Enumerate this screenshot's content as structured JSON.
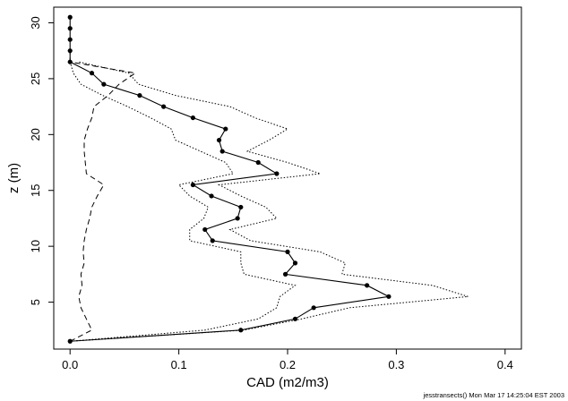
{
  "chart_data": {
    "type": "line",
    "xlabel": "CAD (m2/m3)",
    "ylabel": "z (m)",
    "xlim": [
      -0.015,
      0.415
    ],
    "ylim": [
      0.8,
      31.4
    ],
    "x_ticks": [
      0.0,
      0.1,
      0.2,
      0.3,
      0.4
    ],
    "x_tick_labels": [
      "0.0",
      "0.1",
      "0.2",
      "0.3",
      "0.4"
    ],
    "y_ticks": [
      5,
      10,
      15,
      20,
      25,
      30
    ],
    "y_tick_labels": [
      "5",
      "10",
      "15",
      "20",
      "25",
      "30"
    ],
    "grid": false,
    "footer": "jesstransects() Mon Mar 17 14:25:04 EST 2003",
    "series": [
      {
        "style": "solid-with-points",
        "points": [
          [
            0.0,
            1.5
          ],
          [
            0.157,
            2.5
          ],
          [
            0.207,
            3.5
          ],
          [
            0.224,
            4.5
          ],
          [
            0.293,
            5.5
          ],
          [
            0.273,
            6.5
          ],
          [
            0.198,
            7.5
          ],
          [
            0.207,
            8.5
          ],
          [
            0.2,
            9.5
          ],
          [
            0.131,
            10.5
          ],
          [
            0.124,
            11.5
          ],
          [
            0.154,
            12.5
          ],
          [
            0.157,
            13.5
          ],
          [
            0.13,
            14.5
          ],
          [
            0.113,
            15.5
          ],
          [
            0.19,
            16.5
          ],
          [
            0.173,
            17.5
          ],
          [
            0.14,
            18.5
          ],
          [
            0.137,
            19.5
          ],
          [
            0.143,
            20.5
          ],
          [
            0.113,
            21.5
          ],
          [
            0.086,
            22.5
          ],
          [
            0.064,
            23.5
          ],
          [
            0.031,
            24.5
          ],
          [
            0.02,
            25.5
          ],
          [
            0.0,
            26.5
          ],
          [
            0.0,
            27.5
          ],
          [
            0.0,
            28.5
          ],
          [
            0.0,
            29.5
          ],
          [
            0.0,
            30.5
          ]
        ]
      },
      {
        "style": "dotted-upper",
        "points": [
          [
            0.0,
            1.5
          ],
          [
            0.16,
            2.5
          ],
          [
            0.213,
            3.5
          ],
          [
            0.257,
            4.5
          ],
          [
            0.366,
            5.5
          ],
          [
            0.333,
            6.5
          ],
          [
            0.25,
            7.5
          ],
          [
            0.253,
            8.5
          ],
          [
            0.23,
            9.5
          ],
          [
            0.166,
            10.5
          ],
          [
            0.147,
            11.5
          ],
          [
            0.19,
            12.5
          ],
          [
            0.18,
            13.5
          ],
          [
            0.157,
            14.5
          ],
          [
            0.137,
            15.5
          ],
          [
            0.23,
            16.5
          ],
          [
            0.2,
            17.5
          ],
          [
            0.163,
            18.5
          ],
          [
            0.183,
            19.5
          ],
          [
            0.2,
            20.5
          ],
          [
            0.17,
            21.5
          ],
          [
            0.147,
            22.5
          ],
          [
            0.097,
            23.5
          ],
          [
            0.063,
            24.5
          ],
          [
            0.054,
            25.5
          ],
          [
            0.008,
            26.5
          ]
        ]
      },
      {
        "style": "dotted-lower",
        "points": [
          [
            0.0,
            1.5
          ],
          [
            0.124,
            2.5
          ],
          [
            0.173,
            3.5
          ],
          [
            0.19,
            4.5
          ],
          [
            0.193,
            5.5
          ],
          [
            0.207,
            6.5
          ],
          [
            0.16,
            7.5
          ],
          [
            0.157,
            8.5
          ],
          [
            0.157,
            9.5
          ],
          [
            0.11,
            10.5
          ],
          [
            0.11,
            11.5
          ],
          [
            0.123,
            12.5
          ],
          [
            0.127,
            13.5
          ],
          [
            0.11,
            14.5
          ],
          [
            0.1,
            15.5
          ],
          [
            0.15,
            16.5
          ],
          [
            0.143,
            17.5
          ],
          [
            0.12,
            18.5
          ],
          [
            0.097,
            19.5
          ],
          [
            0.093,
            20.5
          ],
          [
            0.074,
            21.5
          ],
          [
            0.053,
            22.5
          ],
          [
            0.03,
            23.5
          ],
          [
            0.01,
            24.5
          ],
          [
            0.003,
            25.5
          ],
          [
            0.0,
            26.5
          ]
        ]
      },
      {
        "style": "dashed",
        "points": [
          [
            0.0,
            1.5
          ],
          [
            0.02,
            2.5
          ],
          [
            0.015,
            3.5
          ],
          [
            0.01,
            4.5
          ],
          [
            0.008,
            5.5
          ],
          [
            0.011,
            6.5
          ],
          [
            0.01,
            7.5
          ],
          [
            0.013,
            8.5
          ],
          [
            0.012,
            9.5
          ],
          [
            0.013,
            10.5
          ],
          [
            0.015,
            11.5
          ],
          [
            0.018,
            12.5
          ],
          [
            0.02,
            13.5
          ],
          [
            0.025,
            14.5
          ],
          [
            0.031,
            15.5
          ],
          [
            0.015,
            16.5
          ],
          [
            0.014,
            17.5
          ],
          [
            0.013,
            18.5
          ],
          [
            0.013,
            19.5
          ],
          [
            0.016,
            20.5
          ],
          [
            0.02,
            21.5
          ],
          [
            0.022,
            22.5
          ],
          [
            0.035,
            23.5
          ],
          [
            0.045,
            24.5
          ],
          [
            0.06,
            25.5
          ],
          [
            0.0,
            26.5
          ],
          [
            0.0,
            27.5
          ]
        ]
      }
    ]
  }
}
